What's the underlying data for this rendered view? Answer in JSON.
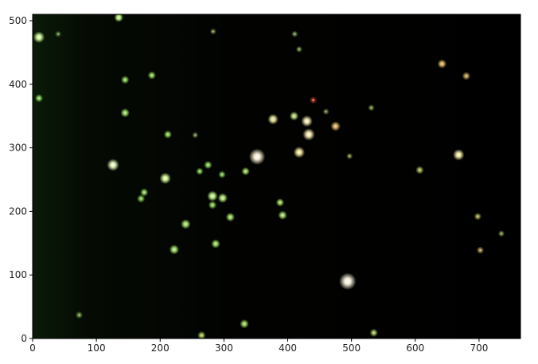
{
  "axes": {
    "xlim": [
      0,
      765
    ],
    "ylim": [
      0,
      510
    ],
    "x_ticks": [
      {
        "value": 0,
        "label": "0"
      },
      {
        "value": 100,
        "label": "100"
      },
      {
        "value": 200,
        "label": "200"
      },
      {
        "value": 300,
        "label": "300"
      },
      {
        "value": 400,
        "label": "400"
      },
      {
        "value": 500,
        "label": "500"
      },
      {
        "value": 600,
        "label": "600"
      },
      {
        "value": 700,
        "label": "700"
      }
    ],
    "y_ticks": [
      {
        "value": 0,
        "label": "0"
      },
      {
        "value": 100,
        "label": "100"
      },
      {
        "value": 200,
        "label": "200"
      },
      {
        "value": 300,
        "label": "300"
      },
      {
        "value": 400,
        "label": "400"
      },
      {
        "value": 500,
        "label": "500"
      }
    ]
  },
  "image": {
    "description_type": "star field image with green and yellow point sources on black background",
    "background_color": "#000000",
    "stars": [
      {
        "x": 10,
        "y": 474,
        "mag": 1.0,
        "color": "#d8ff9a"
      },
      {
        "x": 135,
        "y": 505,
        "mag": 0.7,
        "color": "#c8ff8a"
      },
      {
        "x": 10,
        "y": 378,
        "mag": 0.6,
        "color": "#7fcf50"
      },
      {
        "x": 145,
        "y": 407,
        "mag": 0.6,
        "color": "#8ad050"
      },
      {
        "x": 187,
        "y": 414,
        "mag": 0.6,
        "color": "#8ad050"
      },
      {
        "x": 145,
        "y": 355,
        "mag": 0.7,
        "color": "#9ee060"
      },
      {
        "x": 126,
        "y": 273,
        "mag": 1.1,
        "color": "#eaffc0"
      },
      {
        "x": 212,
        "y": 321,
        "mag": 0.6,
        "color": "#8ad050"
      },
      {
        "x": 208,
        "y": 252,
        "mag": 1.0,
        "color": "#d8ff9a"
      },
      {
        "x": 175,
        "y": 230,
        "mag": 0.6,
        "color": "#8ad050"
      },
      {
        "x": 170,
        "y": 220,
        "mag": 0.6,
        "color": "#7ac048"
      },
      {
        "x": 240,
        "y": 180,
        "mag": 0.8,
        "color": "#a8e868"
      },
      {
        "x": 222,
        "y": 140,
        "mag": 0.8,
        "color": "#a8e868"
      },
      {
        "x": 275,
        "y": 273,
        "mag": 0.6,
        "color": "#8ad050"
      },
      {
        "x": 262,
        "y": 263,
        "mag": 0.5,
        "color": "#7ac048"
      },
      {
        "x": 282,
        "y": 224,
        "mag": 0.9,
        "color": "#c8ff8a"
      },
      {
        "x": 298,
        "y": 221,
        "mag": 0.8,
        "color": "#b8f078"
      },
      {
        "x": 282,
        "y": 210,
        "mag": 0.6,
        "color": "#8ad050"
      },
      {
        "x": 310,
        "y": 191,
        "mag": 0.7,
        "color": "#9ee060"
      },
      {
        "x": 287,
        "y": 149,
        "mag": 0.7,
        "color": "#9ee060"
      },
      {
        "x": 297,
        "y": 258,
        "mag": 0.5,
        "color": "#7ac048"
      },
      {
        "x": 334,
        "y": 263,
        "mag": 0.6,
        "color": "#a0d858"
      },
      {
        "x": 352,
        "y": 286,
        "mag": 1.6,
        "color": "#fff6d8"
      },
      {
        "x": 377,
        "y": 345,
        "mag": 0.9,
        "color": "#f0f0a0"
      },
      {
        "x": 410,
        "y": 350,
        "mag": 0.7,
        "color": "#c0e078"
      },
      {
        "x": 430,
        "y": 342,
        "mag": 1.0,
        "color": "#f8f0b0"
      },
      {
        "x": 433,
        "y": 321,
        "mag": 1.1,
        "color": "#fff0b8"
      },
      {
        "x": 418,
        "y": 293,
        "mag": 1.0,
        "color": "#f8eca0"
      },
      {
        "x": 475,
        "y": 334,
        "mag": 0.8,
        "color": "#e0b860"
      },
      {
        "x": 440,
        "y": 375,
        "mag": 0.5,
        "color": "#a03020"
      },
      {
        "x": 388,
        "y": 214,
        "mag": 0.6,
        "color": "#a0d858"
      },
      {
        "x": 392,
        "y": 194,
        "mag": 0.7,
        "color": "#a8e068"
      },
      {
        "x": 332,
        "y": 23,
        "mag": 0.7,
        "color": "#a0d858"
      },
      {
        "x": 265,
        "y": 5,
        "mag": 0.6,
        "color": "#a0c050"
      },
      {
        "x": 494,
        "y": 90,
        "mag": 1.7,
        "color": "#fff8e0"
      },
      {
        "x": 535,
        "y": 9,
        "mag": 0.6,
        "color": "#a0c050"
      },
      {
        "x": 642,
        "y": 432,
        "mag": 0.7,
        "color": "#e0b860"
      },
      {
        "x": 680,
        "y": 413,
        "mag": 0.6,
        "color": "#c0a050"
      },
      {
        "x": 668,
        "y": 289,
        "mag": 1.0,
        "color": "#f8f0a8"
      },
      {
        "x": 607,
        "y": 265,
        "mag": 0.6,
        "color": "#a0b050"
      },
      {
        "x": 698,
        "y": 192,
        "mag": 0.5,
        "color": "#a0a050"
      },
      {
        "x": 702,
        "y": 139,
        "mag": 0.5,
        "color": "#a08840"
      },
      {
        "x": 735,
        "y": 165,
        "mag": 0.4,
        "color": "#708838"
      },
      {
        "x": 531,
        "y": 363,
        "mag": 0.4,
        "color": "#708838"
      },
      {
        "x": 497,
        "y": 287,
        "mag": 0.4,
        "color": "#707a38"
      },
      {
        "x": 460,
        "y": 357,
        "mag": 0.4,
        "color": "#607838"
      },
      {
        "x": 411,
        "y": 479,
        "mag": 0.4,
        "color": "#608838"
      },
      {
        "x": 418,
        "y": 455,
        "mag": 0.4,
        "color": "#608838"
      },
      {
        "x": 283,
        "y": 483,
        "mag": 0.4,
        "color": "#607838"
      },
      {
        "x": 73,
        "y": 37,
        "mag": 0.5,
        "color": "#608838"
      },
      {
        "x": 255,
        "y": 320,
        "mag": 0.4,
        "color": "#607838"
      },
      {
        "x": 40,
        "y": 479,
        "mag": 0.4,
        "color": "#4a7830"
      }
    ]
  }
}
